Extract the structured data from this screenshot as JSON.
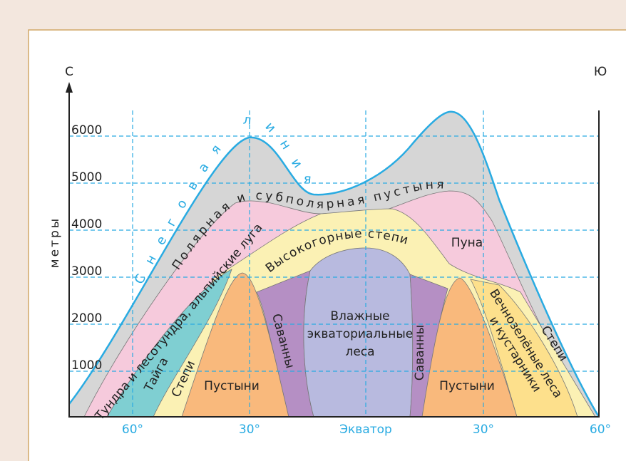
{
  "header": {
    "north": "С",
    "south": "Ю"
  },
  "y_axis": {
    "title": "метры",
    "labels": [
      "6000",
      "5000",
      "4000",
      "3000",
      "2000",
      "1000"
    ]
  },
  "x_axis": {
    "labels": [
      "60°",
      "30°",
      "Экватор",
      "30°",
      "60°"
    ]
  },
  "snow_line": "Снеговая линия",
  "zones": {
    "polar_desert": "Полярная и субполярная пустыня",
    "tundra": "Тундра и лесотундра, альпийские луга",
    "highland_steppes": "Высокогорные степи",
    "puna": "Пуна",
    "taiga": "Тайга",
    "steppes_north": "Степи",
    "deserts_north": "Пустыни",
    "savannas_north": "Саванны",
    "equatorial_forests": [
      "Влажные",
      "экваториальные",
      "леса"
    ],
    "savannas_south": "Саванны",
    "deserts_south": "Пустыни",
    "evergreen": [
      "Вечнозелёные леса",
      "и кустарники"
    ],
    "steppes_south": "Степи"
  }
}
